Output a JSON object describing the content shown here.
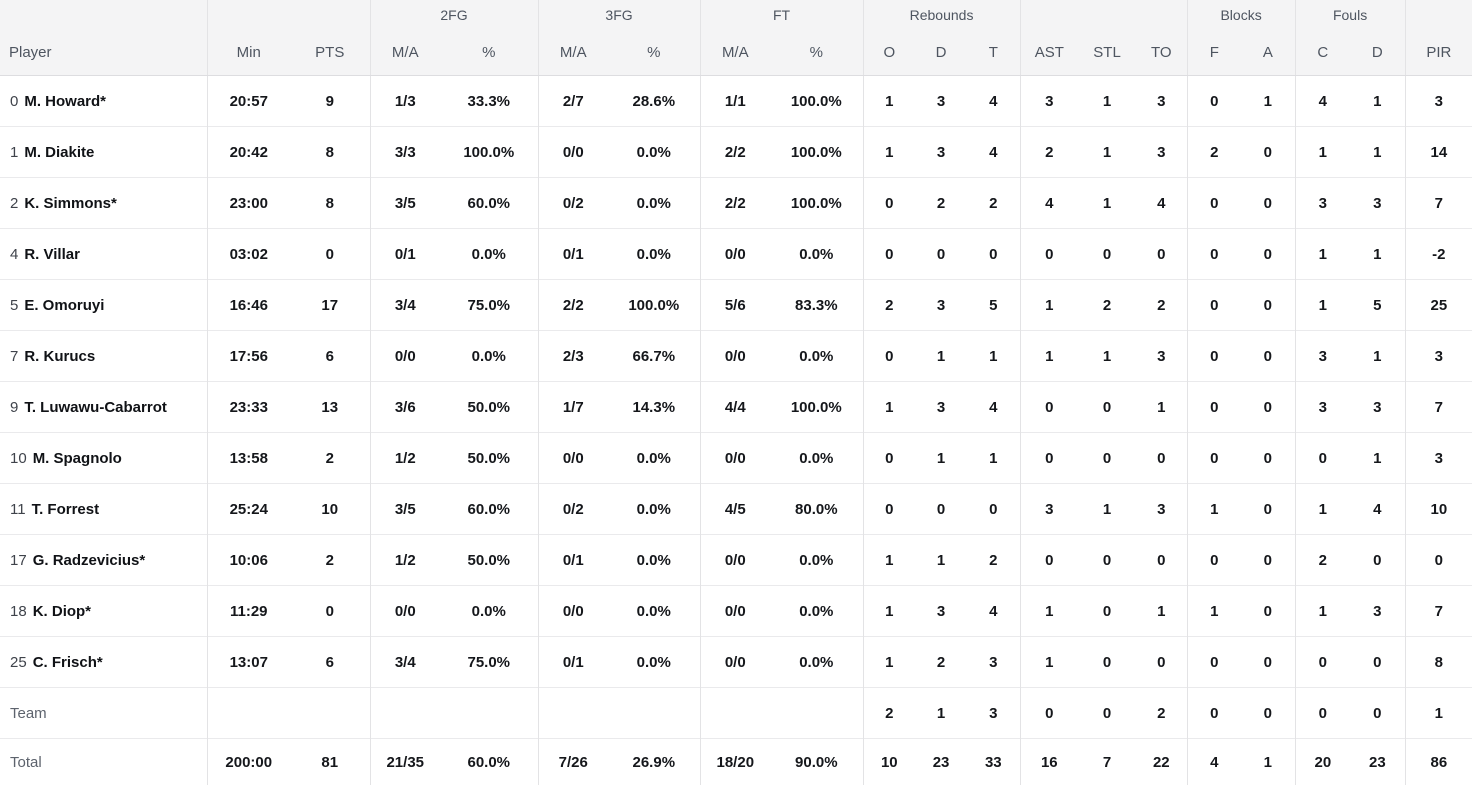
{
  "table": {
    "colors": {
      "header_bg": "#f4f4f5",
      "header_text": "#4e5560",
      "data_text": "#15171b",
      "muted_text": "#5d636d",
      "border": "#e3e3e5",
      "page_bg": "#eff0f1"
    },
    "column_groups": [
      {
        "label": "",
        "span": 1
      },
      {
        "label": "",
        "span": 2
      },
      {
        "label": "2FG",
        "span": 2
      },
      {
        "label": "3FG",
        "span": 2
      },
      {
        "label": "FT",
        "span": 2
      },
      {
        "label": "Rebounds",
        "span": 3
      },
      {
        "label": "",
        "span": 3
      },
      {
        "label": "Blocks",
        "span": 2
      },
      {
        "label": "Fouls",
        "span": 2
      },
      {
        "label": "",
        "span": 1
      }
    ],
    "columns": [
      "Player",
      "Min",
      "PTS",
      "M/A",
      "%",
      "M/A",
      "%",
      "M/A",
      "%",
      "O",
      "D",
      "T",
      "AST",
      "STL",
      "TO",
      "F",
      "A",
      "C",
      "D",
      "PIR"
    ],
    "rows": [
      {
        "number": "0",
        "name": "M. Howard*",
        "type": "player",
        "stats": [
          "20:57",
          "9",
          "1/3",
          "33.3%",
          "2/7",
          "28.6%",
          "1/1",
          "100.0%",
          "1",
          "3",
          "4",
          "3",
          "1",
          "3",
          "0",
          "1",
          "4",
          "1",
          "3"
        ]
      },
      {
        "number": "1",
        "name": "M. Diakite",
        "type": "player",
        "stats": [
          "20:42",
          "8",
          "3/3",
          "100.0%",
          "0/0",
          "0.0%",
          "2/2",
          "100.0%",
          "1",
          "3",
          "4",
          "2",
          "1",
          "3",
          "2",
          "0",
          "1",
          "1",
          "14"
        ]
      },
      {
        "number": "2",
        "name": "K. Simmons*",
        "type": "player",
        "stats": [
          "23:00",
          "8",
          "3/5",
          "60.0%",
          "0/2",
          "0.0%",
          "2/2",
          "100.0%",
          "0",
          "2",
          "2",
          "4",
          "1",
          "4",
          "0",
          "0",
          "3",
          "3",
          "7"
        ]
      },
      {
        "number": "4",
        "name": "R. Villar",
        "type": "player",
        "stats": [
          "03:02",
          "0",
          "0/1",
          "0.0%",
          "0/1",
          "0.0%",
          "0/0",
          "0.0%",
          "0",
          "0",
          "0",
          "0",
          "0",
          "0",
          "0",
          "0",
          "1",
          "1",
          "-2"
        ]
      },
      {
        "number": "5",
        "name": "E. Omoruyi",
        "type": "player",
        "stats": [
          "16:46",
          "17",
          "3/4",
          "75.0%",
          "2/2",
          "100.0%",
          "5/6",
          "83.3%",
          "2",
          "3",
          "5",
          "1",
          "2",
          "2",
          "0",
          "0",
          "1",
          "5",
          "25"
        ]
      },
      {
        "number": "7",
        "name": "R. Kurucs",
        "type": "player",
        "stats": [
          "17:56",
          "6",
          "0/0",
          "0.0%",
          "2/3",
          "66.7%",
          "0/0",
          "0.0%",
          "0",
          "1",
          "1",
          "1",
          "1",
          "3",
          "0",
          "0",
          "3",
          "1",
          "3"
        ]
      },
      {
        "number": "9",
        "name": "T. Luwawu-Cabarrot",
        "type": "player",
        "stats": [
          "23:33",
          "13",
          "3/6",
          "50.0%",
          "1/7",
          "14.3%",
          "4/4",
          "100.0%",
          "1",
          "3",
          "4",
          "0",
          "0",
          "1",
          "0",
          "0",
          "3",
          "3",
          "7"
        ]
      },
      {
        "number": "10",
        "name": "M. Spagnolo",
        "type": "player",
        "stats": [
          "13:58",
          "2",
          "1/2",
          "50.0%",
          "0/0",
          "0.0%",
          "0/0",
          "0.0%",
          "0",
          "1",
          "1",
          "0",
          "0",
          "0",
          "0",
          "0",
          "0",
          "1",
          "3"
        ]
      },
      {
        "number": "11",
        "name": "T. Forrest",
        "type": "player",
        "stats": [
          "25:24",
          "10",
          "3/5",
          "60.0%",
          "0/2",
          "0.0%",
          "4/5",
          "80.0%",
          "0",
          "0",
          "0",
          "3",
          "1",
          "3",
          "1",
          "0",
          "1",
          "4",
          "10"
        ]
      },
      {
        "number": "17",
        "name": "G. Radzevicius*",
        "type": "player",
        "stats": [
          "10:06",
          "2",
          "1/2",
          "50.0%",
          "0/1",
          "0.0%",
          "0/0",
          "0.0%",
          "1",
          "1",
          "2",
          "0",
          "0",
          "0",
          "0",
          "0",
          "2",
          "0",
          "0"
        ]
      },
      {
        "number": "18",
        "name": "K. Diop*",
        "type": "player",
        "stats": [
          "11:29",
          "0",
          "0/0",
          "0.0%",
          "0/0",
          "0.0%",
          "0/0",
          "0.0%",
          "1",
          "3",
          "4",
          "1",
          "0",
          "1",
          "1",
          "0",
          "1",
          "3",
          "7"
        ]
      },
      {
        "number": "25",
        "name": "C. Frisch*",
        "type": "player",
        "stats": [
          "13:07",
          "6",
          "3/4",
          "75.0%",
          "0/1",
          "0.0%",
          "0/0",
          "0.0%",
          "1",
          "2",
          "3",
          "1",
          "0",
          "0",
          "0",
          "0",
          "0",
          "0",
          "8"
        ]
      },
      {
        "number": "",
        "name": "Team",
        "type": "team",
        "stats": [
          "",
          "",
          "",
          "",
          "",
          "",
          "",
          "",
          "2",
          "1",
          "3",
          "0",
          "0",
          "2",
          "0",
          "0",
          "0",
          "0",
          "1"
        ]
      },
      {
        "number": "",
        "name": "Total",
        "type": "total",
        "stats": [
          "200:00",
          "81",
          "21/35",
          "60.0%",
          "7/26",
          "26.9%",
          "18/20",
          "90.0%",
          "10",
          "23",
          "33",
          "16",
          "7",
          "22",
          "4",
          "1",
          "20",
          "23",
          "86"
        ]
      }
    ]
  }
}
